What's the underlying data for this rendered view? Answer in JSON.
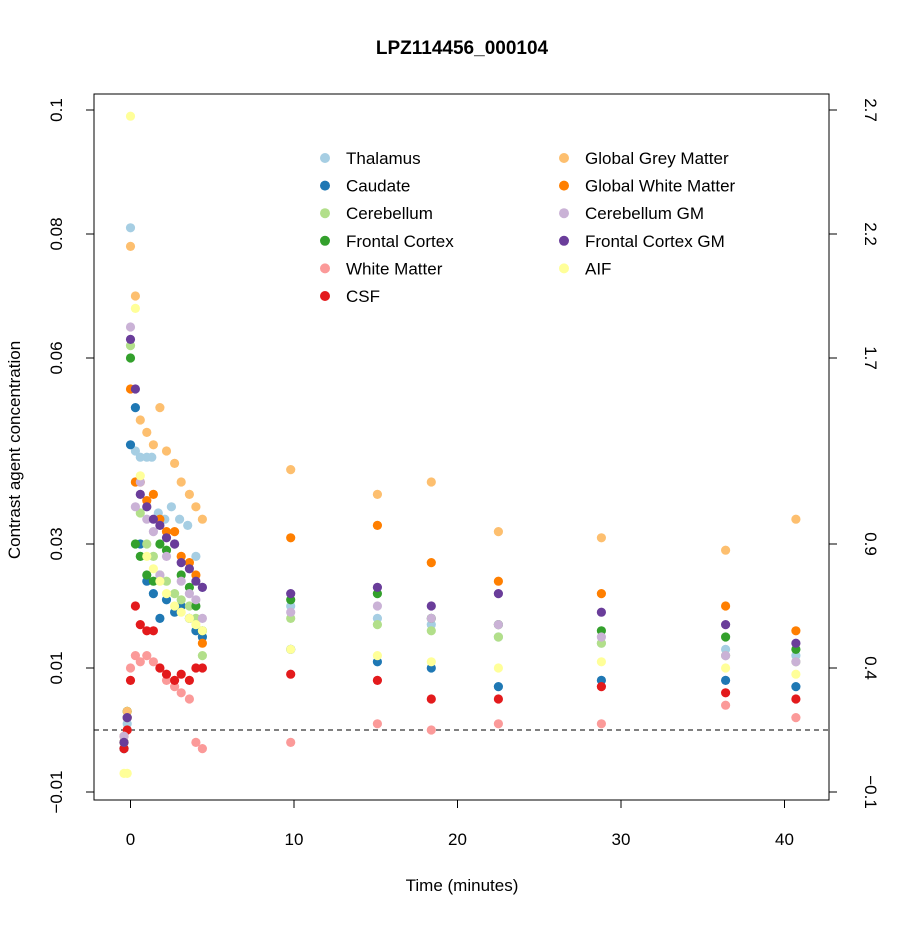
{
  "chart_data": {
    "type": "scatter",
    "title": "LPZ114456_000104",
    "xlabel": "Time (minutes)",
    "ylabel": "Contrast agent concentration",
    "xlim": [
      -2.5,
      42.5
    ],
    "ylim": [
      -0.012,
      0.102
    ],
    "x_ticks": [
      0,
      10,
      20,
      30,
      40
    ],
    "x_tick_labels": [
      "0",
      "10",
      "20",
      "30",
      "40"
    ],
    "y_ticks": [
      -0.01,
      0.01,
      0.03,
      0.06,
      0.08,
      0.1
    ],
    "y_tick_labels": [
      "−0.01",
      "0.01",
      "0.03",
      "0.06",
      "0.08",
      "0.1"
    ],
    "y2_ticks": [
      -0.1,
      0.4,
      0.9,
      1.7,
      2.2,
      2.7
    ],
    "y2_tick_labels": [
      "−0.1",
      "0.4",
      "0.9",
      "1.7",
      "2.2",
      "2.7"
    ],
    "reference_line": {
      "y": 0.0,
      "style": "dashed"
    },
    "legend_position": "top-center",
    "series": [
      {
        "name": "Thalamus",
        "color": "#A6CEE3",
        "x": [
          -0.4,
          -0.2,
          0,
          0.3,
          0.6,
          1,
          1.3,
          1.7,
          2.1,
          2.5,
          3,
          3.5,
          4,
          4.4,
          9.8,
          15.1,
          18.4,
          22.5,
          28.8,
          36.4,
          40.7
        ],
        "y": [
          -0.002,
          0.001,
          0.081,
          0.045,
          0.044,
          0.044,
          0.044,
          0.035,
          0.034,
          0.036,
          0.034,
          0.033,
          0.028,
          0.023,
          0.02,
          0.018,
          0.017,
          0.015,
          0.014,
          0.013,
          0.012
        ]
      },
      {
        "name": "Caudate",
        "color": "#1F78B4",
        "x": [
          -0.4,
          -0.2,
          0,
          0.3,
          0.6,
          1,
          1.4,
          1.8,
          2.2,
          2.7,
          3.1,
          3.6,
          4,
          4.4,
          9.8,
          15.1,
          18.4,
          22.5,
          28.8,
          36.4,
          40.7
        ],
        "y": [
          -0.003,
          0.002,
          0.046,
          0.052,
          0.03,
          0.024,
          0.022,
          0.018,
          0.021,
          0.019,
          0.02,
          0.018,
          0.016,
          0.015,
          0.013,
          0.011,
          0.01,
          0.007,
          0.008,
          0.008,
          0.007
        ]
      },
      {
        "name": "Cerebellum",
        "color": "#B2DF8A",
        "x": [
          -0.4,
          -0.2,
          0,
          0.3,
          0.6,
          1,
          1.4,
          1.8,
          2.2,
          2.7,
          3.1,
          3.6,
          4,
          4.4,
          9.8,
          15.1,
          18.4,
          22.5,
          28.8,
          36.4,
          40.7
        ],
        "y": [
          -0.002,
          0.003,
          0.062,
          0.04,
          0.035,
          0.03,
          0.028,
          0.025,
          0.024,
          0.022,
          0.021,
          0.02,
          0.018,
          0.012,
          0.018,
          0.017,
          0.016,
          0.015,
          0.014,
          0.012,
          0.011
        ]
      },
      {
        "name": "Frontal Cortex",
        "color": "#33A02C",
        "x": [
          -0.4,
          -0.2,
          0,
          0.3,
          0.6,
          1,
          1.4,
          1.8,
          2.2,
          2.7,
          3.1,
          3.6,
          4,
          4.4,
          9.8,
          15.1,
          18.4,
          22.5,
          28.8,
          36.4,
          40.7
        ],
        "y": [
          -0.002,
          0.003,
          0.06,
          0.03,
          0.028,
          0.025,
          0.024,
          0.03,
          0.029,
          0.03,
          0.025,
          0.023,
          0.02,
          0.016,
          0.021,
          0.022,
          0.018,
          0.017,
          0.016,
          0.015,
          0.013
        ]
      },
      {
        "name": "White Matter",
        "color": "#FB9A99",
        "x": [
          -0.4,
          -0.2,
          0,
          0.3,
          0.6,
          1,
          1.4,
          1.8,
          2.2,
          2.7,
          3.1,
          3.6,
          4,
          4.4,
          9.8,
          15.1,
          18.4,
          22.5,
          28.8,
          36.4,
          40.7
        ],
        "y": [
          -0.001,
          0.002,
          0.01,
          0.012,
          0.011,
          0.012,
          0.011,
          0.01,
          0.008,
          0.007,
          0.006,
          0.005,
          -0.002,
          -0.003,
          -0.002,
          0.001,
          0.0,
          0.001,
          0.001,
          0.004,
          0.002
        ]
      },
      {
        "name": "CSF",
        "color": "#E31A1C",
        "x": [
          -0.4,
          -0.2,
          0,
          0.3,
          0.6,
          1,
          1.4,
          1.8,
          2.2,
          2.7,
          3.1,
          3.6,
          4,
          4.4,
          9.8,
          15.1,
          18.4,
          22.5,
          28.8,
          36.4,
          40.7
        ],
        "y": [
          -0.003,
          0.0,
          0.008,
          0.02,
          0.017,
          0.016,
          0.016,
          0.01,
          0.009,
          0.008,
          0.009,
          0.008,
          0.01,
          0.01,
          0.009,
          0.008,
          0.005,
          0.005,
          0.007,
          0.006,
          0.005
        ]
      },
      {
        "name": "Global Grey Matter",
        "color": "#FDBF6F",
        "x": [
          -0.4,
          -0.2,
          0,
          0.3,
          0.6,
          1,
          1.4,
          1.8,
          2.2,
          2.7,
          3.1,
          3.6,
          4,
          4.4,
          9.8,
          15.1,
          18.4,
          22.5,
          28.8,
          36.4,
          40.7
        ],
        "y": [
          -0.001,
          0.003,
          0.078,
          0.07,
          0.05,
          0.048,
          0.046,
          0.052,
          0.045,
          0.043,
          0.04,
          0.038,
          0.036,
          0.034,
          0.042,
          0.038,
          0.04,
          0.032,
          0.031,
          0.029,
          0.034
        ]
      },
      {
        "name": "Global White Matter",
        "color": "#FF7F00",
        "x": [
          -0.4,
          -0.2,
          0,
          0.3,
          0.6,
          1,
          1.4,
          1.8,
          2.2,
          2.7,
          3.1,
          3.6,
          4,
          4.4,
          9.8,
          15.1,
          18.4,
          22.5,
          28.8,
          36.4,
          40.7
        ],
        "y": [
          -0.002,
          0.002,
          0.055,
          0.04,
          0.04,
          0.037,
          0.038,
          0.034,
          0.032,
          0.032,
          0.028,
          0.027,
          0.025,
          0.014,
          0.031,
          0.033,
          0.027,
          0.024,
          0.022,
          0.02,
          0.016
        ]
      },
      {
        "name": "Cerebellum GM",
        "color": "#CAB2D6",
        "x": [
          -0.4,
          -0.2,
          0,
          0.3,
          0.6,
          1,
          1.4,
          1.8,
          2.2,
          2.7,
          3.1,
          3.6,
          4,
          4.4,
          9.8,
          15.1,
          18.4,
          22.5,
          28.8,
          36.4,
          40.7
        ],
        "y": [
          -0.001,
          0.002,
          0.065,
          0.036,
          0.04,
          0.034,
          0.032,
          0.025,
          0.028,
          0.03,
          0.024,
          0.022,
          0.021,
          0.018,
          0.019,
          0.02,
          0.018,
          0.017,
          0.015,
          0.012,
          0.011
        ]
      },
      {
        "name": "Frontal Cortex GM",
        "color": "#6A3D9A",
        "x": [
          -0.4,
          -0.2,
          0,
          0.3,
          0.6,
          1,
          1.4,
          1.8,
          2.2,
          2.7,
          3.1,
          3.6,
          4,
          4.4,
          9.8,
          15.1,
          18.4,
          22.5,
          28.8,
          36.4,
          40.7
        ],
        "y": [
          -0.002,
          0.002,
          0.063,
          0.055,
          0.038,
          0.036,
          0.034,
          0.033,
          0.031,
          0.03,
          0.027,
          0.026,
          0.024,
          0.023,
          0.022,
          0.023,
          0.02,
          0.022,
          0.019,
          0.017,
          0.014
        ]
      },
      {
        "name": "AIF",
        "color": "#FFFF99",
        "x": [
          -0.4,
          -0.2,
          0,
          0.3,
          0.6,
          1,
          1.4,
          1.8,
          2.2,
          2.7,
          3.1,
          3.6,
          4,
          4.4,
          9.8,
          15.1,
          18.4,
          22.5,
          28.8,
          36.4,
          40.7
        ],
        "y": [
          -0.007,
          -0.007,
          0.099,
          0.068,
          0.041,
          0.028,
          0.026,
          0.024,
          0.022,
          0.02,
          0.019,
          0.018,
          0.017,
          0.016,
          0.013,
          0.012,
          0.011,
          0.01,
          0.011,
          0.01,
          0.009
        ]
      }
    ]
  }
}
